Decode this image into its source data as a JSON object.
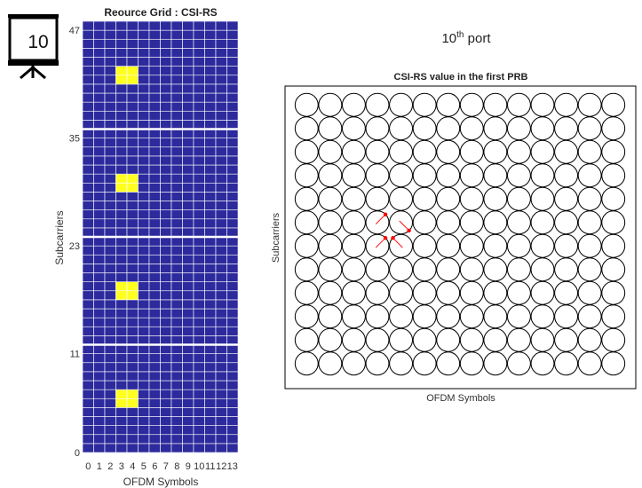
{
  "badge": {
    "number": "10",
    "icon": "presentation-board-icon"
  },
  "port_label": {
    "number": "10",
    "suffix": "th",
    "word": "port"
  },
  "chart_data": [
    {
      "type": "heatmap",
      "title": "Reource Grid : CSI-RS",
      "xlabel": "OFDM Symbols",
      "ylabel": "Subcarriers",
      "x_ticks": [
        "0",
        "1",
        "2",
        "3",
        "4",
        "5",
        "6",
        "7",
        "8",
        "9",
        "10",
        "11",
        "12",
        "13"
      ],
      "y_ticks": [
        "0",
        "11",
        "23",
        "35",
        "47"
      ],
      "n_symbols": 14,
      "n_subcarriers": 48,
      "prb_size": 12,
      "colors": {
        "background": "#2c2a9c",
        "grid": "#ffffff",
        "csi_rs": "#ffff22"
      },
      "highlighted_cells": [
        {
          "symbol": 3,
          "subcarrier": 5
        },
        {
          "symbol": 4,
          "subcarrier": 5
        },
        {
          "symbol": 3,
          "subcarrier": 6
        },
        {
          "symbol": 4,
          "subcarrier": 6
        },
        {
          "symbol": 3,
          "subcarrier": 17
        },
        {
          "symbol": 4,
          "subcarrier": 17
        },
        {
          "symbol": 3,
          "subcarrier": 18
        },
        {
          "symbol": 4,
          "subcarrier": 18
        },
        {
          "symbol": 3,
          "subcarrier": 29
        },
        {
          "symbol": 4,
          "subcarrier": 29
        },
        {
          "symbol": 3,
          "subcarrier": 30
        },
        {
          "symbol": 4,
          "subcarrier": 30
        },
        {
          "symbol": 3,
          "subcarrier": 41
        },
        {
          "symbol": 4,
          "subcarrier": 41
        },
        {
          "symbol": 3,
          "subcarrier": 42
        },
        {
          "symbol": 4,
          "subcarrier": 42
        }
      ]
    },
    {
      "type": "scatter",
      "title": "CSI-RS value in the first PRB",
      "xlabel": "OFDM Symbols",
      "ylabel": "Subcarriers",
      "columns": 14,
      "rows": 12,
      "colors": {
        "circle": "#000000",
        "arrow": "#ff0000"
      },
      "arrows": [
        {
          "symbol": 3,
          "subcarrier": 5,
          "direction": "up-right"
        },
        {
          "symbol": 4,
          "subcarrier": 5,
          "direction": "up-left"
        },
        {
          "symbol": 3,
          "subcarrier": 6,
          "direction": "up-right"
        },
        {
          "symbol": 4,
          "subcarrier": 6,
          "direction": "down-right"
        }
      ]
    }
  ]
}
